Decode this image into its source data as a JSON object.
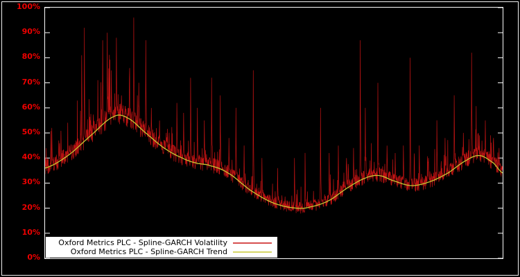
{
  "figure": {
    "background": "#000000",
    "frame_color": "#ffffff"
  },
  "axis": {
    "tick_label_color": "#ee0000",
    "tick_mark_color": "#ffffff"
  },
  "legend": {
    "position": "bottom-left",
    "background": "#ffffff",
    "text_color": "#000000"
  },
  "chart_data": {
    "type": "line",
    "title": "",
    "xlabel": "",
    "ylabel": "",
    "ylim": [
      0,
      100
    ],
    "grid": false,
    "y_tick_labels": [
      "0%",
      "10%",
      "20%",
      "30%",
      "40%",
      "50%",
      "60%",
      "70%",
      "80%",
      "90%",
      "100%"
    ],
    "series": [
      {
        "name": "Oxford Metrics PLC - Spline-GARCH Volatility",
        "color": "#c81414",
        "style": "spiky"
      },
      {
        "name": "Oxford Metrics PLC - Spline-GARCH Trend",
        "color": "#c8c832",
        "style": "smooth"
      }
    ],
    "trend_points": [
      [
        0.0,
        36
      ],
      [
        0.05,
        41
      ],
      [
        0.1,
        49
      ],
      [
        0.15,
        56.5
      ],
      [
        0.18,
        56
      ],
      [
        0.22,
        50
      ],
      [
        0.26,
        44
      ],
      [
        0.3,
        40
      ],
      [
        0.33,
        38
      ],
      [
        0.36,
        37
      ],
      [
        0.4,
        34
      ],
      [
        0.45,
        27
      ],
      [
        0.5,
        22
      ],
      [
        0.55,
        20
      ],
      [
        0.58,
        20.5
      ],
      [
        0.62,
        23
      ],
      [
        0.66,
        28
      ],
      [
        0.7,
        32
      ],
      [
        0.73,
        33
      ],
      [
        0.76,
        31
      ],
      [
        0.8,
        29
      ],
      [
        0.84,
        30.5
      ],
      [
        0.88,
        34
      ],
      [
        0.92,
        39
      ],
      [
        0.95,
        41
      ],
      [
        0.98,
        38
      ],
      [
        1.0,
        34
      ]
    ],
    "spikes": [
      [
        0.015,
        52
      ],
      [
        0.03,
        47
      ],
      [
        0.053,
        45
      ],
      [
        0.08,
        81
      ],
      [
        0.086,
        92
      ],
      [
        0.106,
        55
      ],
      [
        0.126,
        87
      ],
      [
        0.136,
        90
      ],
      [
        0.145,
        75
      ],
      [
        0.156,
        88
      ],
      [
        0.167,
        65
      ],
      [
        0.182,
        60
      ],
      [
        0.194,
        96
      ],
      [
        0.205,
        70
      ],
      [
        0.22,
        87
      ],
      [
        0.232,
        60
      ],
      [
        0.25,
        55
      ],
      [
        0.265,
        50
      ],
      [
        0.288,
        62
      ],
      [
        0.303,
        58
      ],
      [
        0.318,
        72
      ],
      [
        0.333,
        60
      ],
      [
        0.348,
        55
      ],
      [
        0.364,
        72
      ],
      [
        0.383,
        65
      ],
      [
        0.402,
        48
      ],
      [
        0.417,
        60
      ],
      [
        0.435,
        45
      ],
      [
        0.455,
        75
      ],
      [
        0.474,
        40
      ],
      [
        0.508,
        36
      ],
      [
        0.545,
        40
      ],
      [
        0.568,
        42
      ],
      [
        0.602,
        60
      ],
      [
        0.621,
        42
      ],
      [
        0.641,
        45
      ],
      [
        0.659,
        40
      ],
      [
        0.674,
        44
      ],
      [
        0.689,
        87
      ],
      [
        0.7,
        60
      ],
      [
        0.727,
        70
      ],
      [
        0.747,
        45
      ],
      [
        0.765,
        42
      ],
      [
        0.783,
        45
      ],
      [
        0.798,
        80
      ],
      [
        0.818,
        45
      ],
      [
        0.838,
        40
      ],
      [
        0.856,
        55
      ],
      [
        0.874,
        48
      ],
      [
        0.894,
        65
      ],
      [
        0.914,
        50
      ],
      [
        0.932,
        82
      ],
      [
        0.947,
        50
      ],
      [
        0.962,
        55
      ],
      [
        0.98,
        48
      ],
      [
        0.992,
        44
      ]
    ],
    "samples": 1900,
    "noise_seed": 1234,
    "noise_amplitude": 2.4
  }
}
